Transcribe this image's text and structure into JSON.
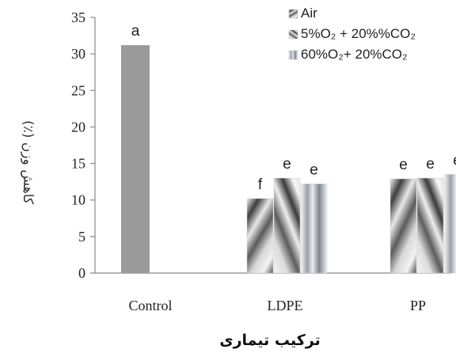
{
  "chart_data": {
    "type": "bar",
    "categories": [
      "Control",
      "LDPE",
      "PP"
    ],
    "series": [
      {
        "name": "Air",
        "values": [
          31.2,
          10.2,
          12.9
        ],
        "labels": [
          "a",
          "f",
          "e"
        ]
      },
      {
        "name": "5%O₂ + 20%%CO₂",
        "values": [
          null,
          13.0,
          13.0
        ],
        "labels": [
          "",
          "e",
          "e"
        ]
      },
      {
        "name": "60%O₂+ 20%CO₂",
        "values": [
          null,
          12.2,
          13.5
        ],
        "labels": [
          "",
          "e",
          "e"
        ]
      }
    ],
    "ylim": [
      0,
      35
    ],
    "yticks": [
      0,
      5,
      10,
      15,
      20,
      25,
      30,
      35
    ],
    "ylabel": "کاهش وزن (٪)",
    "xlabel": "ترکیب تیماری",
    "legend_position": "top-right",
    "grid": false,
    "colors": {
      "control_bar": "#9a9a9a",
      "axis": "#888888",
      "text": "#222222"
    }
  }
}
